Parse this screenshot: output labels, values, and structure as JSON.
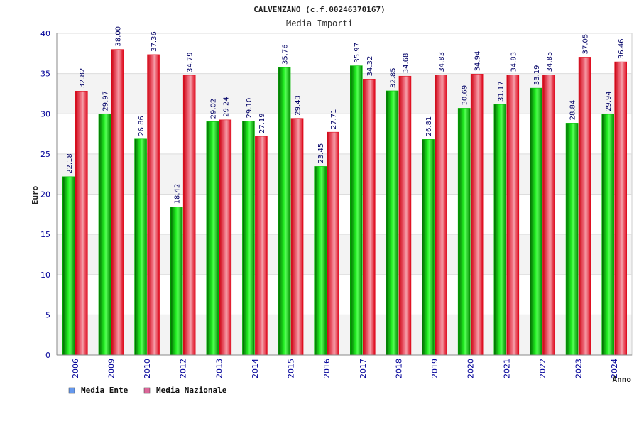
{
  "chart_data": {
    "type": "bar",
    "title": "CALVENZANO (c.f.00246370167)",
    "subtitle": "Media Importi",
    "xlabel": "Anno",
    "ylabel": "Euro",
    "ylim": [
      0,
      40
    ],
    "yticks": [
      0,
      5,
      10,
      15,
      20,
      25,
      30,
      35,
      40
    ],
    "grid": true,
    "legend_position": "bottom-left",
    "categories": [
      "2006",
      "2009",
      "2010",
      "2012",
      "2013",
      "2014",
      "2015",
      "2016",
      "2017",
      "2018",
      "2019",
      "2020",
      "2021",
      "2022",
      "2023",
      "2024"
    ],
    "series": [
      {
        "name": "Media Ente",
        "color": "#00c000",
        "legend_color": "#6699ee",
        "values": [
          22.18,
          29.97,
          26.86,
          18.42,
          29.02,
          29.1,
          35.76,
          23.45,
          35.97,
          32.85,
          26.81,
          30.69,
          31.17,
          33.19,
          28.84,
          29.94
        ],
        "labels": [
          "22.18",
          "29.97",
          "26.86",
          "18.42",
          "29.02",
          "29.10",
          "35.76",
          "23.45",
          "35.97",
          "32.85",
          "26.81",
          "30.69",
          "31.17",
          "33.19",
          "28.84",
          "29.94"
        ]
      },
      {
        "name": "Media Nazionale",
        "color": "#e01020",
        "legend_color": "#dd6699",
        "values": [
          32.82,
          38.0,
          37.36,
          34.79,
          29.24,
          27.19,
          29.43,
          27.71,
          34.32,
          34.68,
          34.83,
          34.94,
          34.83,
          34.85,
          37.05,
          36.46
        ],
        "labels": [
          "32.82",
          "38.00",
          "37.36",
          "34.79",
          "29.24",
          "27.19",
          "29.43",
          "27.71",
          "34.32",
          "34.68",
          "34.83",
          "34.94",
          "34.83",
          "34.85",
          "37.05",
          "36.46"
        ]
      }
    ]
  }
}
